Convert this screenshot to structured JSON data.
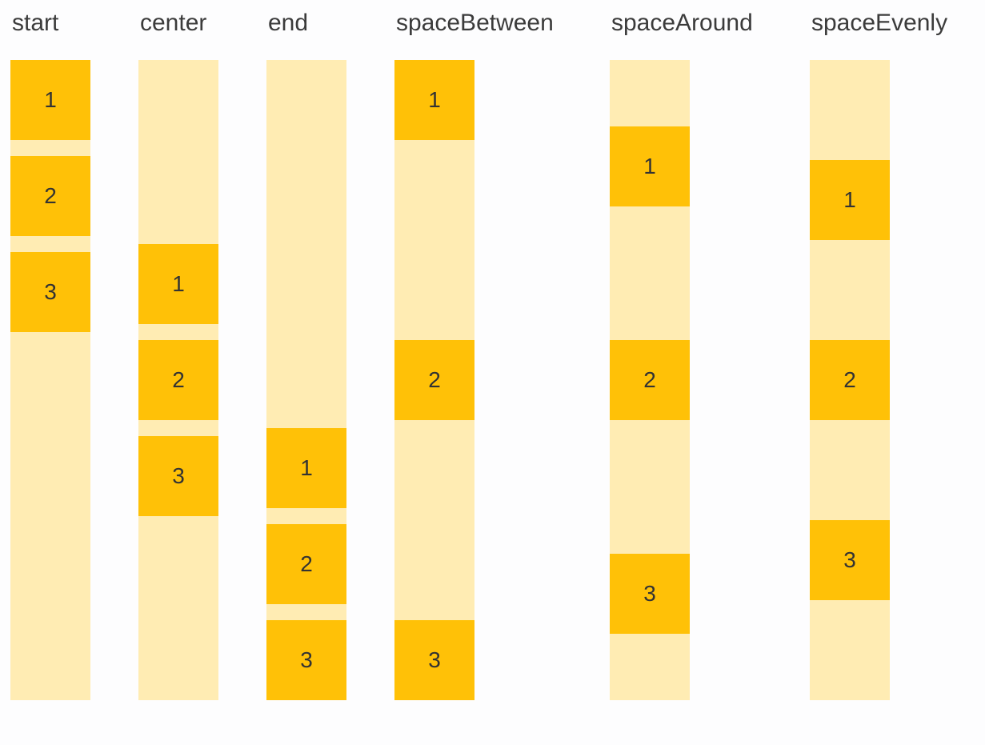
{
  "page": {
    "background": "#FDFDFE"
  },
  "palette": {
    "box": "#FFC107",
    "track": "#FFECB3",
    "label_text": "#3B3B3B",
    "digit_text": "#333333"
  },
  "diagram": {
    "subject": "main-axis-alignment-demo"
  },
  "columns": [
    {
      "label": "start",
      "justify": "flex-start",
      "items": [
        "1",
        "2",
        "3"
      ]
    },
    {
      "label": "center",
      "justify": "center",
      "items": [
        "1",
        "2",
        "3"
      ]
    },
    {
      "label": "end",
      "justify": "flex-end",
      "items": [
        "1",
        "2",
        "3"
      ]
    },
    {
      "label": "spaceBetween",
      "justify": "space-between",
      "items": [
        "1",
        "2",
        "3"
      ]
    },
    {
      "label": "spaceAround",
      "justify": "space-around",
      "items": [
        "1",
        "2",
        "3"
      ]
    },
    {
      "label": "spaceEvenly",
      "justify": "space-evenly",
      "items": [
        "1",
        "2",
        "3"
      ]
    }
  ]
}
